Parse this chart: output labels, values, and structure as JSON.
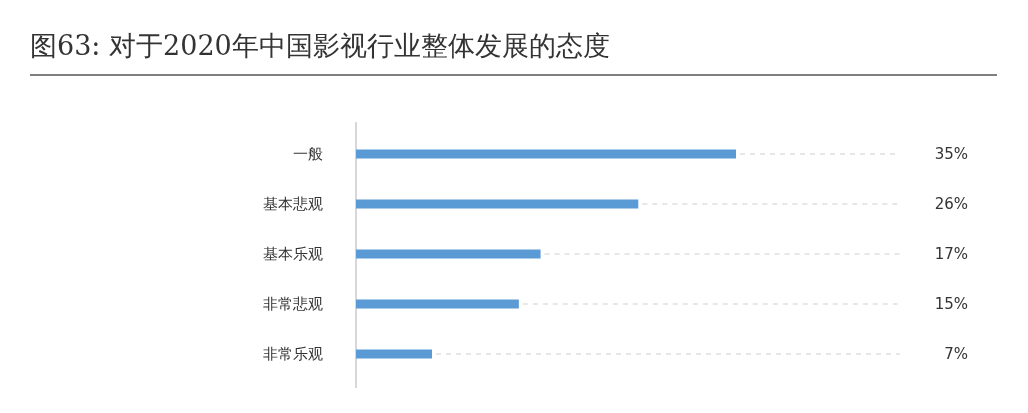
{
  "chart_data": {
    "type": "bar",
    "orientation": "horizontal",
    "title": "图63: 对于2020年中国影视行业整体发展的态度",
    "categories": [
      "一般",
      "基本悲观",
      "基本乐观",
      "非常悲观",
      "非常乐观"
    ],
    "values": [
      35,
      26,
      17,
      15,
      7
    ],
    "value_labels": [
      "35%",
      "26%",
      "17%",
      "15%",
      "7%"
    ],
    "color": "#5b9bd5"
  }
}
